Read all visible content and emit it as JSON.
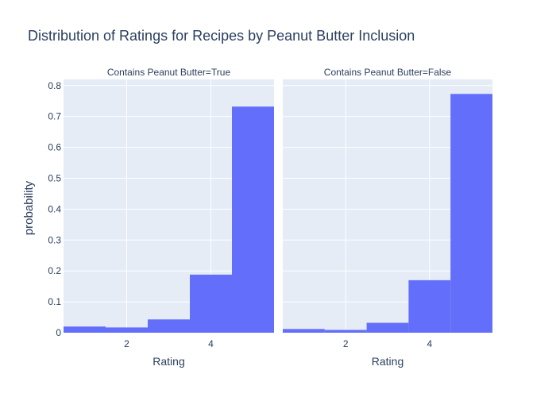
{
  "chart_data": {
    "type": "bar",
    "title": "Distribution of Ratings for Recipes by Peanut Butter Inclusion",
    "xlabel": "Rating",
    "ylabel": "probability",
    "ylim": [
      0,
      0.82
    ],
    "xlim": [
      0.5,
      5.5
    ],
    "xticks": [
      2,
      4
    ],
    "yticks": [
      0,
      0.1,
      0.2,
      0.3,
      0.4,
      0.5,
      0.6,
      0.7,
      0.8
    ],
    "ytick_labels": [
      "0",
      "0.1",
      "0.2",
      "0.3",
      "0.4",
      "0.5",
      "0.6",
      "0.7",
      "0.8"
    ],
    "grid": true,
    "bar_color": "#636efa",
    "plot_bg": "#e5ecf6",
    "panels": [
      {
        "title": "Contains Peanut Butter=True",
        "bins": [
          1,
          2,
          3,
          4,
          5
        ],
        "values": [
          0.02,
          0.017,
          0.043,
          0.188,
          0.732
        ]
      },
      {
        "title": "Contains Peanut Butter=False",
        "bins": [
          1,
          2,
          3,
          4,
          5
        ],
        "values": [
          0.012,
          0.009,
          0.032,
          0.17,
          0.773
        ]
      }
    ]
  }
}
